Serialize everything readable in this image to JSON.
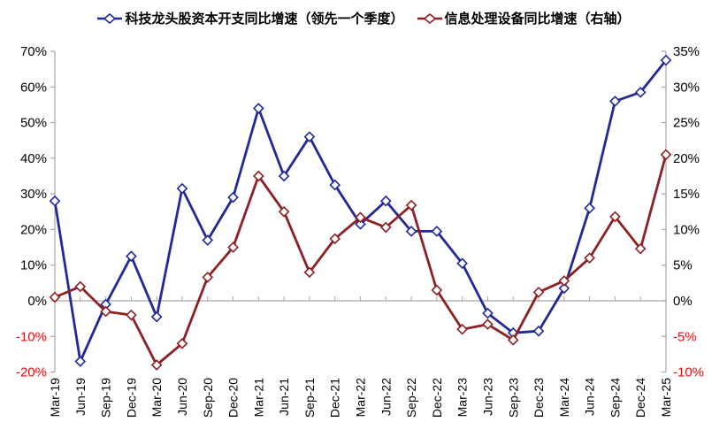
{
  "legend": {
    "items": [
      {
        "label": "科技龙头股资本开支同比增速（领先一个季度）"
      },
      {
        "label": "信息处理设备同比增速（右轴）"
      }
    ]
  },
  "chart_data": {
    "type": "line",
    "title": "",
    "xlabel": "",
    "ylabel": "",
    "categories": [
      "Mar-19",
      "Jun-19",
      "Sep-19",
      "Dec-19",
      "Mar-20",
      "Jun-20",
      "Sep-20",
      "Dec-20",
      "Mar-21",
      "Jun-21",
      "Sep-21",
      "Dec-21",
      "Mar-22",
      "Jun-22",
      "Sep-22",
      "Dec-22",
      "Mar-23",
      "Jun-23",
      "Sep-23",
      "Dec-23",
      "Mar-24",
      "Jun-24",
      "Sep-24",
      "Dec-24",
      "Mar-25"
    ],
    "series": [
      {
        "name": "科技龙头股资本开支同比增速（领先一个季度）",
        "axis": "left",
        "color": "#20289B",
        "marker": "open-diamond",
        "values": [
          28,
          -17,
          -1,
          12.5,
          -4.5,
          31.5,
          17,
          29,
          54,
          35,
          46,
          32.5,
          21.5,
          28,
          19.5,
          19.5,
          10.5,
          -3.5,
          -9,
          -8.5,
          3.5,
          26,
          56,
          58.5,
          67.5
        ]
      },
      {
        "name": "信息处理设备同比增速（右轴）",
        "axis": "right",
        "color": "#8E2023",
        "marker": "open-diamond",
        "values": [
          0.5,
          2,
          -1.5,
          -2,
          -9,
          -6,
          3.3,
          7.5,
          17.5,
          12.5,
          4,
          8.7,
          11.7,
          10.3,
          13.4,
          1.5,
          -4,
          -3.3,
          -5.5,
          1.2,
          2.8,
          6,
          11.8,
          7.3,
          20.5
        ]
      }
    ],
    "left_axis": {
      "min": -20,
      "max": 70,
      "tick_step": 10,
      "tick_labels": [
        "70%",
        "60%",
        "50%",
        "40%",
        "30%",
        "20%",
        "10%",
        "0%",
        "-10%",
        "-20%"
      ],
      "tick_values": [
        70,
        60,
        50,
        40,
        30,
        20,
        10,
        0,
        -10,
        -20
      ],
      "positive_label_color": "#000000",
      "negative_label_color": "#FF0000"
    },
    "right_axis": {
      "min": -10,
      "max": 35,
      "tick_step": 5,
      "tick_labels": [
        "35%",
        "30%",
        "25%",
        "20%",
        "15%",
        "10%",
        "5%",
        "0%",
        "-5%",
        "-10%"
      ],
      "tick_values": [
        35,
        30,
        25,
        20,
        15,
        10,
        5,
        0,
        -5,
        -10
      ],
      "positive_label_color": "#000000",
      "negative_label_color": "#FF0000"
    },
    "grid": "zero-line-only",
    "legend_position": "top",
    "axis_line_color": "#A6A6A6"
  }
}
